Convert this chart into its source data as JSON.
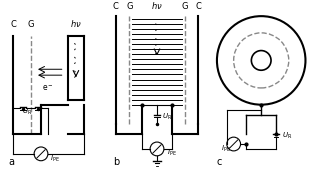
{
  "bg_color": "#ffffff",
  "line_color": "#000000",
  "dashed_color": "#888888",
  "label_a": "a",
  "label_b": "b",
  "label_c": "c"
}
